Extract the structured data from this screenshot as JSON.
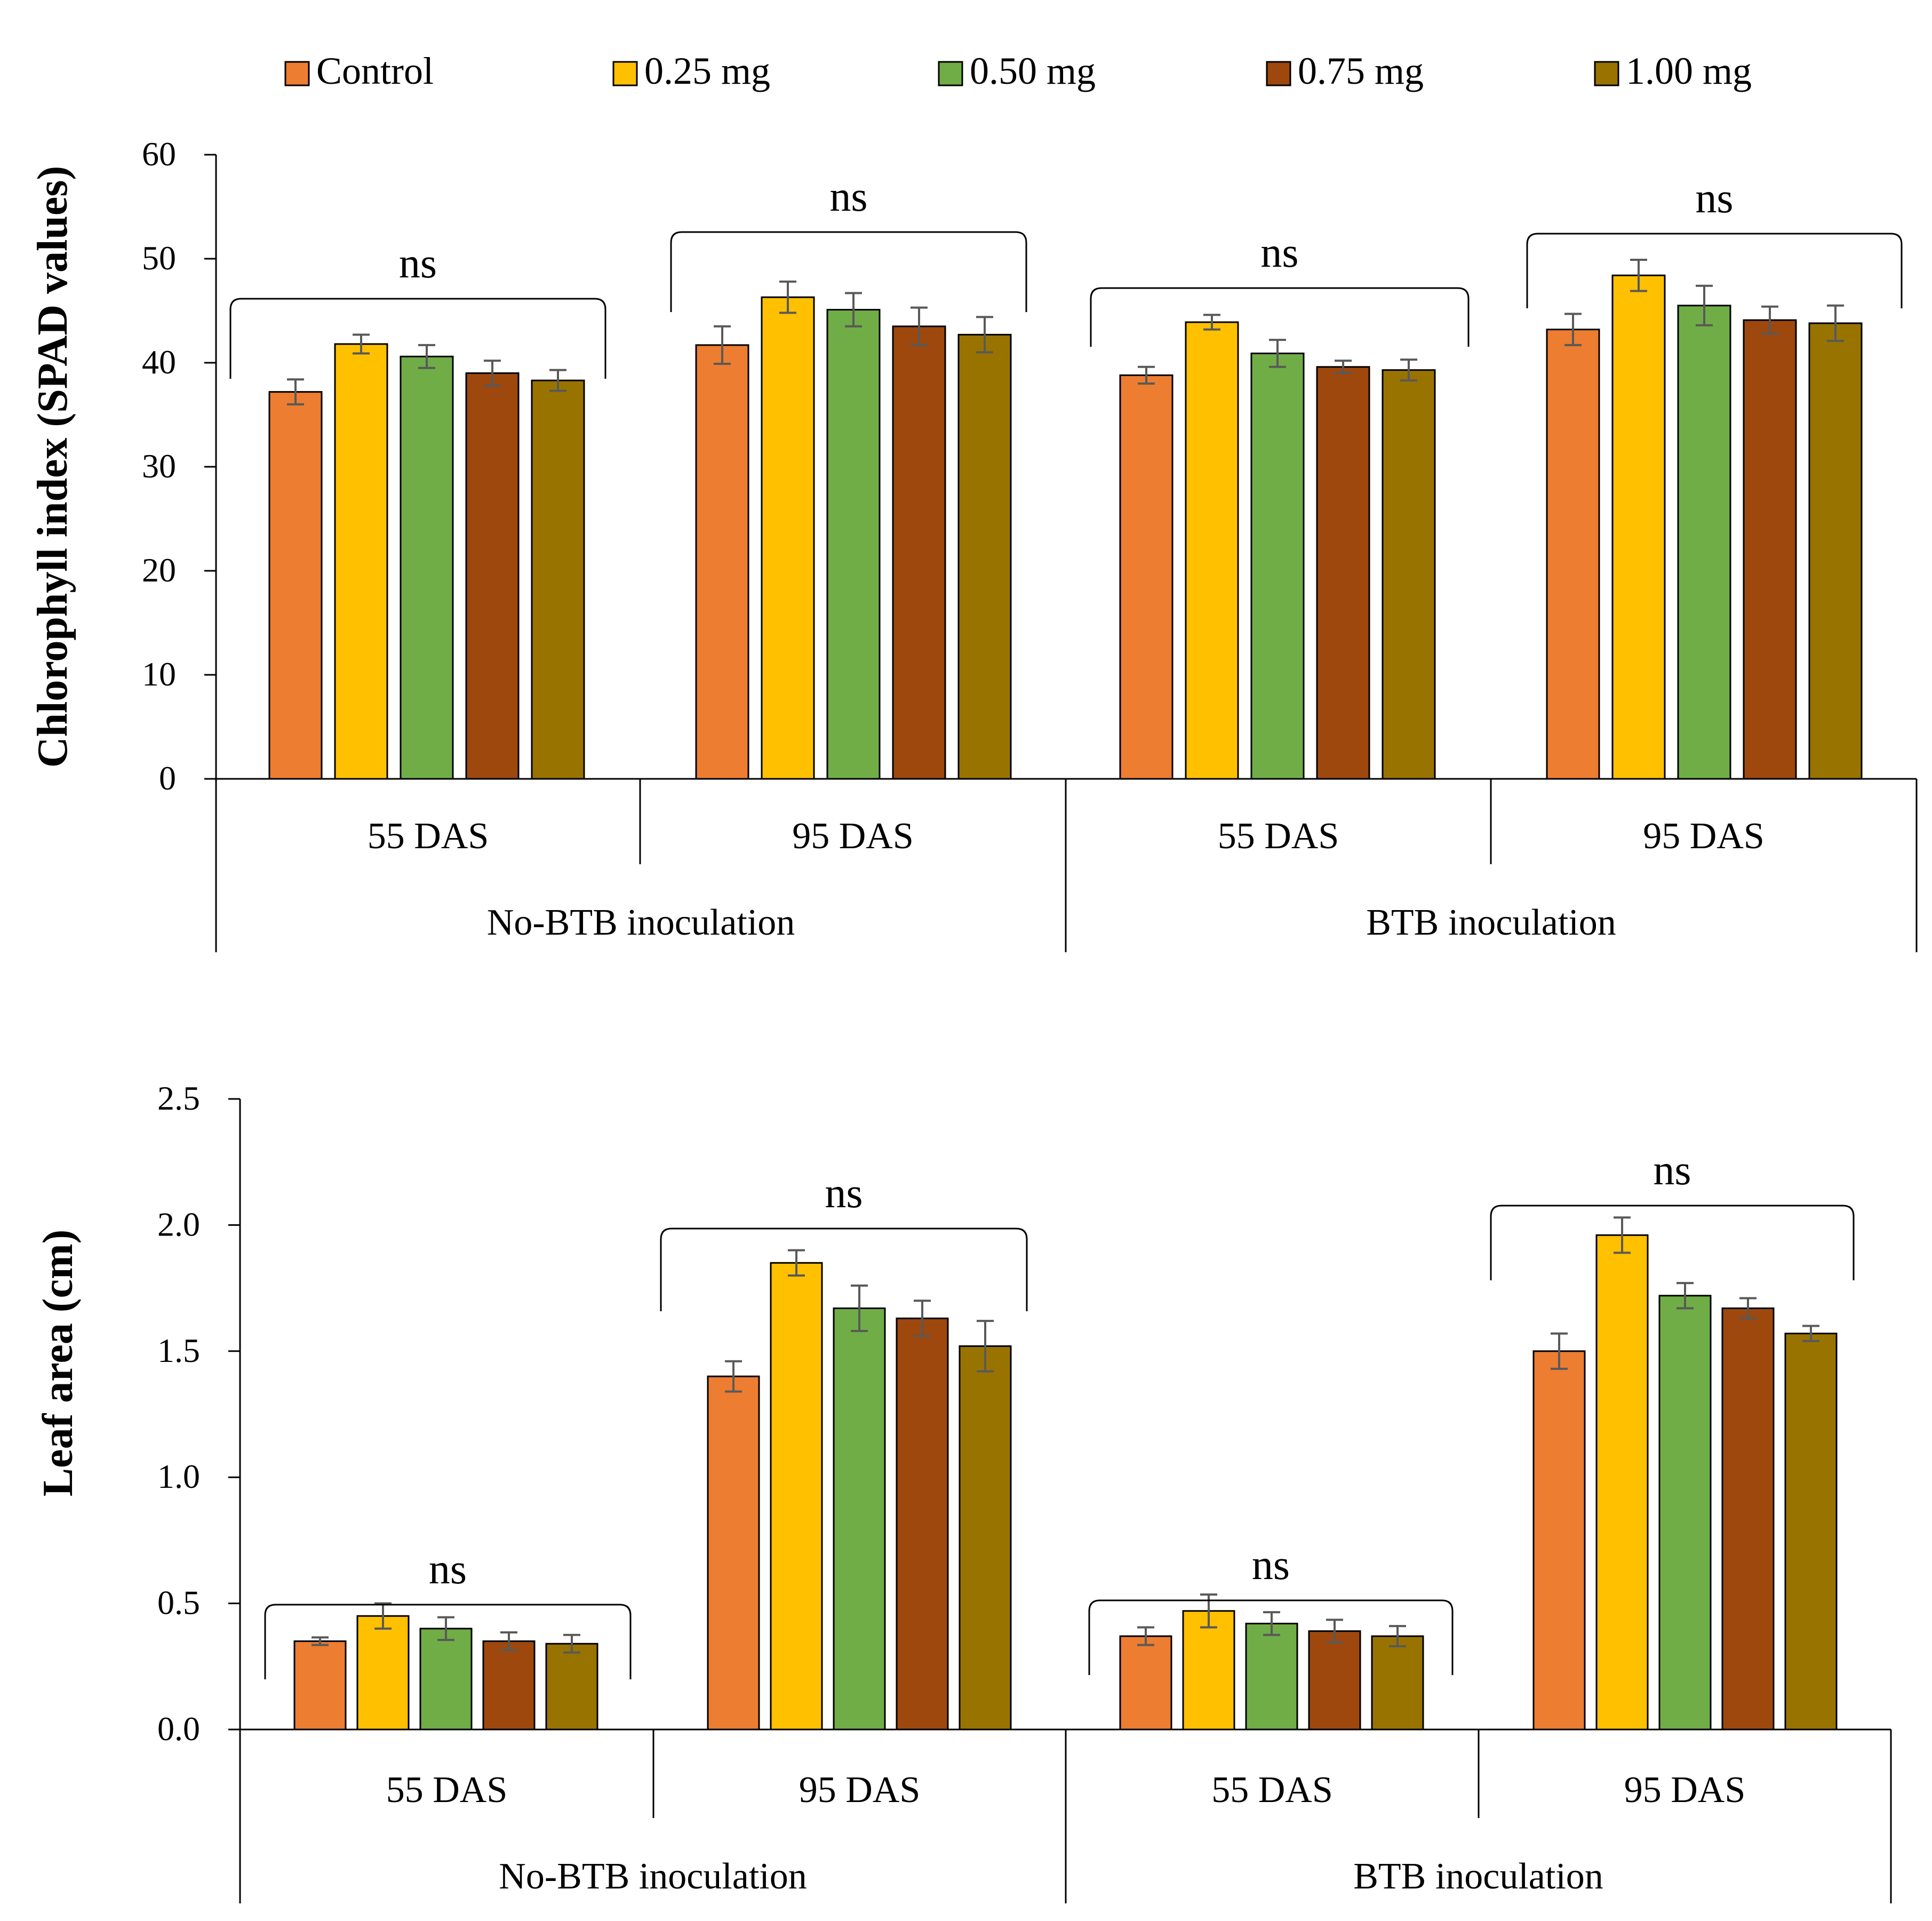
{
  "legend": [
    {
      "label": "Control",
      "color": "#ED7D31"
    },
    {
      "label": "0.25 mg",
      "color": "#FFC000"
    },
    {
      "label": "0.50 mg",
      "color": "#70AD47"
    },
    {
      "label": "0.75 mg",
      "color": "#9E480E"
    },
    {
      "label": "1.00 mg",
      "color": "#997300"
    }
  ],
  "chart_data": [
    {
      "type": "bar",
      "ylabel": "Chlorophyll index (SPAD values)",
      "ylim": [
        0,
        60
      ],
      "yticks": [
        "0",
        "10",
        "20",
        "30",
        "40",
        "50",
        "60"
      ],
      "yticks_values": [
        0,
        10,
        20,
        30,
        40,
        50,
        60
      ],
      "groups": [
        {
          "label": "55 DAS",
          "parent": "No-BTB inoculation",
          "significance": "ns",
          "values": [
            37.2,
            41.8,
            40.6,
            39.0,
            38.3
          ],
          "errors": [
            1.2,
            0.9,
            1.1,
            1.2,
            1.0
          ]
        },
        {
          "label": "95 DAS",
          "parent": "No-BTB inoculation",
          "significance": "ns",
          "values": [
            41.7,
            46.3,
            45.1,
            43.5,
            42.7
          ],
          "errors": [
            1.8,
            1.5,
            1.6,
            1.8,
            1.7
          ]
        },
        {
          "label": "55 DAS",
          "parent": "BTB inoculation",
          "significance": "ns",
          "values": [
            38.8,
            43.9,
            40.9,
            39.6,
            39.3
          ],
          "errors": [
            0.8,
            0.7,
            1.3,
            0.6,
            1.0
          ]
        },
        {
          "label": "95 DAS",
          "parent": "BTB inoculation",
          "significance": "ns",
          "values": [
            43.2,
            48.4,
            45.5,
            44.1,
            43.8
          ],
          "errors": [
            1.5,
            1.5,
            1.9,
            1.3,
            1.7
          ]
        }
      ],
      "parents": [
        "No-BTB inoculation",
        "BTB inoculation"
      ]
    },
    {
      "type": "bar",
      "ylabel": "Leaf area (cm)",
      "ylim": [
        0,
        2.5
      ],
      "yticks": [
        "0.0",
        "0.5",
        "1.0",
        "1.5",
        "2.0",
        "2.5"
      ],
      "yticks_values": [
        0,
        0.5,
        1.0,
        1.5,
        2.0,
        2.5
      ],
      "groups": [
        {
          "label": "55 DAS",
          "parent": "No-BTB inoculation",
          "significance": "ns",
          "values": [
            0.35,
            0.45,
            0.4,
            0.35,
            0.34
          ],
          "errors": [
            0.015,
            0.05,
            0.045,
            0.035,
            0.035
          ]
        },
        {
          "label": "95 DAS",
          "parent": "No-BTB inoculation",
          "significance": "ns",
          "values": [
            1.4,
            1.85,
            1.67,
            1.63,
            1.52
          ],
          "errors": [
            0.06,
            0.05,
            0.09,
            0.07,
            0.1
          ]
        },
        {
          "label": "55 DAS",
          "parent": "BTB inoculation",
          "significance": "ns",
          "values": [
            0.37,
            0.47,
            0.42,
            0.39,
            0.37
          ],
          "errors": [
            0.035,
            0.065,
            0.045,
            0.045,
            0.04
          ]
        },
        {
          "label": "95 DAS",
          "parent": "BTB inoculation",
          "significance": "ns",
          "values": [
            1.5,
            1.96,
            1.72,
            1.67,
            1.57
          ],
          "errors": [
            0.07,
            0.07,
            0.05,
            0.04,
            0.03
          ]
        }
      ],
      "parents": [
        "No-BTB inoculation",
        "BTB inoculation"
      ]
    }
  ]
}
